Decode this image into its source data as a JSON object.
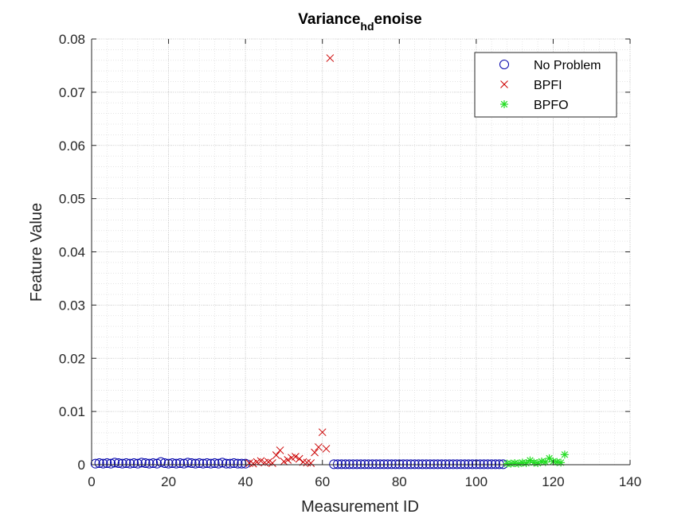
{
  "chart_data": {
    "type": "scatter",
    "title": {
      "main": "Variance",
      "subscript": "hd",
      "suffix": "enoise"
    },
    "xlabel": "Measurement ID",
    "ylabel": "Feature Value",
    "xlim": [
      0,
      140
    ],
    "ylim": [
      0,
      0.08
    ],
    "xticks": [
      0,
      20,
      40,
      60,
      80,
      100,
      120,
      140
    ],
    "yticks": [
      0,
      0.01,
      0.02,
      0.03,
      0.04,
      0.05,
      0.06,
      0.07,
      0.08
    ],
    "grid": true,
    "minor_grid": true,
    "legend_position": "top-right",
    "series": [
      {
        "name": "No Problem",
        "marker": "circle",
        "color": "#0000aa",
        "points": [
          [
            1,
            0.0002
          ],
          [
            2,
            0.0003
          ],
          [
            3,
            0.0002
          ],
          [
            4,
            0.0003
          ],
          [
            5,
            0.0002
          ],
          [
            6,
            0.0004
          ],
          [
            7,
            0.0003
          ],
          [
            8,
            0.0002
          ],
          [
            9,
            0.0003
          ],
          [
            10,
            0.0002
          ],
          [
            11,
            0.0003
          ],
          [
            12,
            0.0002
          ],
          [
            13,
            0.0004
          ],
          [
            14,
            0.0003
          ],
          [
            15,
            0.0002
          ],
          [
            16,
            0.0003
          ],
          [
            17,
            0.0002
          ],
          [
            18,
            0.0005
          ],
          [
            19,
            0.0003
          ],
          [
            20,
            0.0002
          ],
          [
            21,
            0.0003
          ],
          [
            22,
            0.0002
          ],
          [
            23,
            0.0003
          ],
          [
            24,
            0.0002
          ],
          [
            25,
            0.0004
          ],
          [
            26,
            0.0003
          ],
          [
            27,
            0.0002
          ],
          [
            28,
            0.0003
          ],
          [
            29,
            0.0002
          ],
          [
            30,
            0.0003
          ],
          [
            31,
            0.0002
          ],
          [
            32,
            0.0003
          ],
          [
            33,
            0.0002
          ],
          [
            34,
            0.0004
          ],
          [
            35,
            0.0002
          ],
          [
            36,
            0.0002
          ],
          [
            37,
            0.0003
          ],
          [
            38,
            0.0002
          ],
          [
            39,
            0.0002
          ],
          [
            40,
            0.0002
          ],
          [
            63,
            0.0001
          ],
          [
            64,
            0.0001
          ],
          [
            65,
            0.0001
          ],
          [
            66,
            0.0001
          ],
          [
            67,
            0.0001
          ],
          [
            68,
            0.0001
          ],
          [
            69,
            0.0001
          ],
          [
            70,
            0.0001
          ],
          [
            71,
            0.0001
          ],
          [
            72,
            0.0001
          ],
          [
            73,
            0.0001
          ],
          [
            74,
            0.0001
          ],
          [
            75,
            0.0001
          ],
          [
            76,
            0.0001
          ],
          [
            77,
            0.0001
          ],
          [
            78,
            0.0001
          ],
          [
            79,
            0.0001
          ],
          [
            80,
            0.0001
          ],
          [
            81,
            0.0001
          ],
          [
            82,
            0.0001
          ],
          [
            83,
            0.0001
          ],
          [
            84,
            0.0001
          ],
          [
            85,
            0.0001
          ],
          [
            86,
            0.0001
          ],
          [
            87,
            0.0001
          ],
          [
            88,
            0.0001
          ],
          [
            89,
            0.0001
          ],
          [
            90,
            0.0001
          ],
          [
            91,
            0.0001
          ],
          [
            92,
            0.0001
          ],
          [
            93,
            0.0001
          ],
          [
            94,
            0.0001
          ],
          [
            95,
            0.0001
          ],
          [
            96,
            0.0001
          ],
          [
            97,
            0.0001
          ],
          [
            98,
            0.0001
          ],
          [
            99,
            0.0001
          ],
          [
            100,
            0.0001
          ],
          [
            101,
            0.0001
          ],
          [
            102,
            0.0001
          ],
          [
            103,
            0.0001
          ],
          [
            104,
            0.0001
          ],
          [
            105,
            0.0001
          ],
          [
            106,
            0.0001
          ],
          [
            107,
            0.0001
          ]
        ]
      },
      {
        "name": "BPFI",
        "marker": "x",
        "color": "#cc0000",
        "points": [
          [
            41,
            0.0003
          ],
          [
            42,
            0.0002
          ],
          [
            43,
            0.0005
          ],
          [
            44,
            0.0007
          ],
          [
            45,
            0.0004
          ],
          [
            46,
            0.0005
          ],
          [
            47,
            0.0003
          ],
          [
            48,
            0.0018
          ],
          [
            49,
            0.0027
          ],
          [
            50,
            0.0006
          ],
          [
            51,
            0.0009
          ],
          [
            52,
            0.0013
          ],
          [
            53,
            0.0015
          ],
          [
            54,
            0.0011
          ],
          [
            55,
            0.0005
          ],
          [
            56,
            0.0004
          ],
          [
            57,
            0.0003
          ],
          [
            58,
            0.0023
          ],
          [
            59,
            0.0033
          ],
          [
            60,
            0.0061
          ],
          [
            61,
            0.003
          ],
          [
            62,
            0.0764
          ]
        ]
      },
      {
        "name": "BPFO",
        "marker": "asterisk",
        "color": "#22dd22",
        "points": [
          [
            108,
            0.0002
          ],
          [
            109,
            0.0002
          ],
          [
            110,
            0.0003
          ],
          [
            111,
            0.0002
          ],
          [
            112,
            0.0004
          ],
          [
            113,
            0.0003
          ],
          [
            114,
            0.0008
          ],
          [
            115,
            0.0004
          ],
          [
            116,
            0.0003
          ],
          [
            117,
            0.0006
          ],
          [
            118,
            0.0005
          ],
          [
            119,
            0.0012
          ],
          [
            120,
            0.0006
          ],
          [
            121,
            0.0005
          ],
          [
            122,
            0.0004
          ],
          [
            123,
            0.0019
          ]
        ]
      }
    ]
  }
}
